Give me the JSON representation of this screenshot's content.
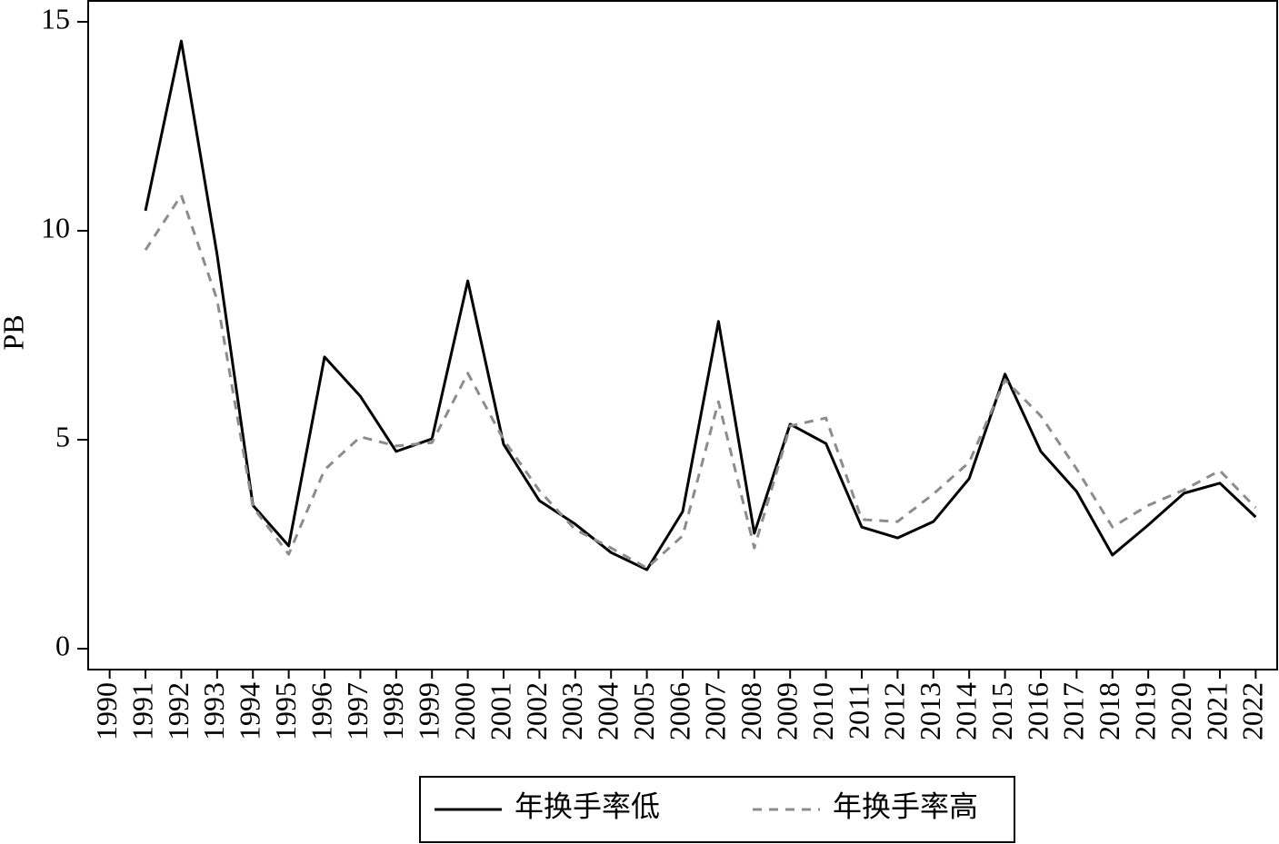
{
  "chart_data": {
    "type": "line",
    "y_label": "PB",
    "categories": [
      "1990",
      "1991",
      "1992",
      "1993",
      "1994",
      "1995",
      "1996",
      "1997",
      "1998",
      "1999",
      "2000",
      "2001",
      "2002",
      "2003",
      "2004",
      "2005",
      "2006",
      "2007",
      "2008",
      "2009",
      "2010",
      "2011",
      "2012",
      "2013",
      "2014",
      "2015",
      "2016",
      "2017",
      "2018",
      "2019",
      "2020",
      "2021",
      "2022"
    ],
    "series": [
      {
        "name": "年换手率低",
        "color": "#000000",
        "dash": "solid",
        "values": [
          null,
          10.48,
          14.54,
          9.43,
          3.43,
          2.46,
          6.98,
          6.04,
          4.72,
          5.02,
          8.8,
          4.89,
          3.54,
          2.98,
          2.3,
          1.89,
          3.28,
          7.83,
          2.76,
          5.37,
          4.91,
          2.91,
          2.65,
          3.04,
          4.07,
          6.57,
          4.72,
          3.76,
          2.24,
          2.96,
          3.72,
          3.96,
          3.15
        ]
      },
      {
        "name": "年换手率高",
        "color": "#8c8c8c",
        "dash": "dashed",
        "values": [
          null,
          9.54,
          10.85,
          8.35,
          3.39,
          2.26,
          4.28,
          5.07,
          4.85,
          4.93,
          6.59,
          5.0,
          3.78,
          2.85,
          2.41,
          1.93,
          2.7,
          5.91,
          2.41,
          5.33,
          5.52,
          3.09,
          3.04,
          3.7,
          4.46,
          6.43,
          5.57,
          4.3,
          2.91,
          3.43,
          3.8,
          4.26,
          3.37
        ]
      }
    ],
    "ylim": [
      -0.5,
      15.5
    ],
    "yticks": [
      0,
      5,
      10,
      15
    ],
    "grid": false,
    "legend": "bottom"
  }
}
